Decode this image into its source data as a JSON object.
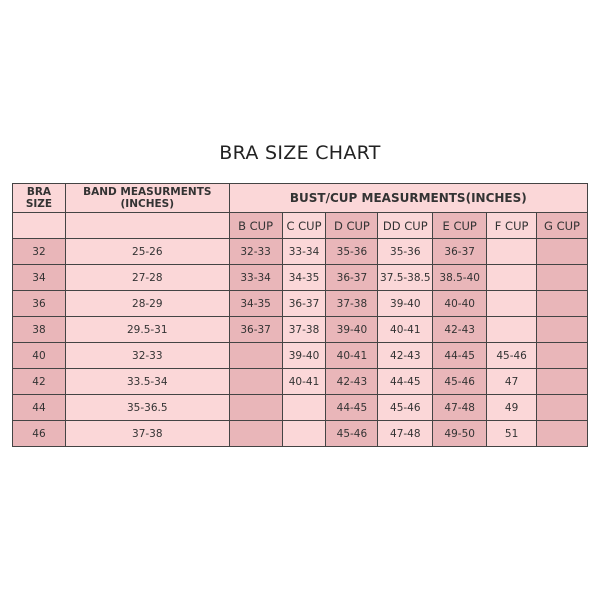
{
  "title": "BRA SIZE CHART",
  "headers": {
    "bra_size": "BRA SIZE",
    "band": "BAND MEASURMENTS (INCHES)",
    "bust": "BUST/CUP MEASURMENTS(INCHES)",
    "cups": [
      "B CUP",
      "C CUP",
      "D CUP",
      "DD CUP",
      "E CUP",
      "F CUP",
      "G CUP"
    ]
  },
  "colors": {
    "light": "#fbd7d8",
    "dark": "#e9b6b9"
  },
  "rows": [
    {
      "size": "32",
      "band": "25-26",
      "cups": [
        "32-33",
        "33-34",
        "35-36",
        "35-36",
        "36-37",
        "",
        ""
      ]
    },
    {
      "size": "34",
      "band": "27-28",
      "cups": [
        "33-34",
        "34-35",
        "36-37",
        "37.5-38.5",
        "38.5-40",
        "",
        ""
      ]
    },
    {
      "size": "36",
      "band": "28-29",
      "cups": [
        "34-35",
        "36-37",
        "37-38",
        "39-40",
        "40-40",
        "",
        ""
      ]
    },
    {
      "size": "38",
      "band": "29.5-31",
      "cups": [
        "36-37",
        "37-38",
        "39-40",
        "40-41",
        "42-43",
        "",
        ""
      ]
    },
    {
      "size": "40",
      "band": "32-33",
      "cups": [
        "",
        "39-40",
        "40-41",
        "42-43",
        "44-45",
        "45-46",
        ""
      ]
    },
    {
      "size": "42",
      "band": "33.5-34",
      "cups": [
        "",
        "40-41",
        "42-43",
        "44-45",
        "45-46",
        "47",
        ""
      ]
    },
    {
      "size": "44",
      "band": "35-36.5",
      "cups": [
        "",
        "",
        "44-45",
        "45-46",
        "47-48",
        "49",
        ""
      ]
    },
    {
      "size": "46",
      "band": "37-38",
      "cups": [
        "",
        "",
        "45-46",
        "47-48",
        "49-50",
        "51",
        ""
      ]
    }
  ]
}
